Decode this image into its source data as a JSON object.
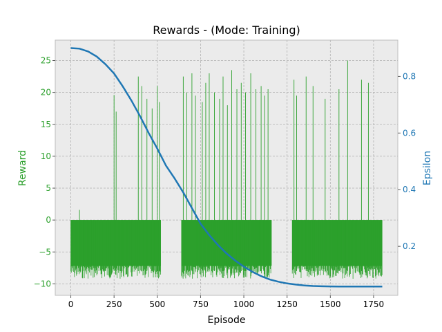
{
  "chart_data": {
    "type": "bar+line",
    "title": "Rewards - (Mode: Training)",
    "xlabel": "Episode",
    "ylabel_left": "Reward",
    "ylabel_right": "Epsilon",
    "xlim": [
      -90,
      1890
    ],
    "ylim_left": [
      -11.8,
      28.2
    ],
    "ylim_right": [
      0.027,
      0.928
    ],
    "x_ticks": [
      0,
      250,
      500,
      750,
      1000,
      1250,
      1500,
      1750
    ],
    "y_left_ticks": [
      -10,
      -5,
      0,
      5,
      10,
      15,
      20,
      25
    ],
    "y_right_ticks": [
      0.2,
      0.4,
      0.6,
      0.8
    ],
    "x_tick_labels": [
      "0",
      "250",
      "500",
      "750",
      "1000",
      "1250",
      "1500",
      "1750"
    ],
    "y_left_tick_labels": [
      "−10",
      "−5",
      "0",
      "5",
      "10",
      "15",
      "20",
      "25"
    ],
    "y_right_tick_labels": [
      "0.2",
      "0.4",
      "0.6",
      "0.8"
    ],
    "grid": true,
    "colors": {
      "reward": "#2ca02c",
      "epsilon": "#1f77b4",
      "background": "#ebebeb",
      "grid": "#b0b0b0"
    },
    "series": [
      {
        "name": "Reward",
        "kind": "bar",
        "axis": "left",
        "episodes": 1800,
        "segments": [
          {
            "start": 0,
            "end": 520,
            "low": -9,
            "high": 0
          },
          {
            "start": 640,
            "end": 1160,
            "low": -9,
            "high": 0
          },
          {
            "start": 1280,
            "end": 1800,
            "low": -9,
            "high": 0
          }
        ],
        "spikes": [
          {
            "x": 50,
            "y": 1.6
          },
          {
            "x": 250,
            "y": 19.6
          },
          {
            "x": 262,
            "y": 17.0
          },
          {
            "x": 390,
            "y": 22.5
          },
          {
            "x": 410,
            "y": 21.0
          },
          {
            "x": 440,
            "y": 19.0
          },
          {
            "x": 470,
            "y": 17.5
          },
          {
            "x": 500,
            "y": 21.0
          },
          {
            "x": 512,
            "y": 18.5
          },
          {
            "x": 650,
            "y": 22.5
          },
          {
            "x": 670,
            "y": 20.0
          },
          {
            "x": 700,
            "y": 23.0
          },
          {
            "x": 720,
            "y": 19.5
          },
          {
            "x": 760,
            "y": 18.5
          },
          {
            "x": 780,
            "y": 21.5
          },
          {
            "x": 800,
            "y": 23.0
          },
          {
            "x": 830,
            "y": 20.0
          },
          {
            "x": 860,
            "y": 19.0
          },
          {
            "x": 880,
            "y": 22.5
          },
          {
            "x": 905,
            "y": 18.0
          },
          {
            "x": 930,
            "y": 23.5
          },
          {
            "x": 960,
            "y": 20.5
          },
          {
            "x": 985,
            "y": 21.5
          },
          {
            "x": 1010,
            "y": 20.0
          },
          {
            "x": 1040,
            "y": 23.0
          },
          {
            "x": 1070,
            "y": 20.5
          },
          {
            "x": 1100,
            "y": 21.0
          },
          {
            "x": 1120,
            "y": 19.5
          },
          {
            "x": 1140,
            "y": 20.5
          },
          {
            "x": 1290,
            "y": 22.0
          },
          {
            "x": 1305,
            "y": 19.5
          },
          {
            "x": 1360,
            "y": 22.5
          },
          {
            "x": 1400,
            "y": 21.0
          },
          {
            "x": 1470,
            "y": 19.0
          },
          {
            "x": 1550,
            "y": 20.5
          },
          {
            "x": 1600,
            "y": 25.0
          },
          {
            "x": 1680,
            "y": 22.0
          },
          {
            "x": 1720,
            "y": 21.5
          }
        ]
      },
      {
        "name": "Epsilon",
        "kind": "line",
        "axis": "right",
        "points": [
          [
            0,
            0.9
          ],
          [
            50,
            0.898
          ],
          [
            100,
            0.888
          ],
          [
            150,
            0.87
          ],
          [
            200,
            0.843
          ],
          [
            250,
            0.81
          ],
          [
            300,
            0.765
          ],
          [
            350,
            0.715
          ],
          [
            400,
            0.66
          ],
          [
            450,
            0.6
          ],
          [
            500,
            0.545
          ],
          [
            550,
            0.485
          ],
          [
            600,
            0.44
          ],
          [
            650,
            0.39
          ],
          [
            700,
            0.335
          ],
          [
            750,
            0.28
          ],
          [
            800,
            0.24
          ],
          [
            850,
            0.205
          ],
          [
            900,
            0.175
          ],
          [
            950,
            0.15
          ],
          [
            1000,
            0.128
          ],
          [
            1050,
            0.11
          ],
          [
            1100,
            0.095
          ],
          [
            1150,
            0.083
          ],
          [
            1200,
            0.075
          ],
          [
            1250,
            0.069
          ],
          [
            1300,
            0.065
          ],
          [
            1350,
            0.062
          ],
          [
            1400,
            0.06
          ],
          [
            1450,
            0.059
          ],
          [
            1500,
            0.0585
          ],
          [
            1550,
            0.058
          ],
          [
            1600,
            0.058
          ],
          [
            1650,
            0.058
          ],
          [
            1700,
            0.058
          ],
          [
            1750,
            0.058
          ],
          [
            1800,
            0.058
          ]
        ]
      }
    ]
  }
}
